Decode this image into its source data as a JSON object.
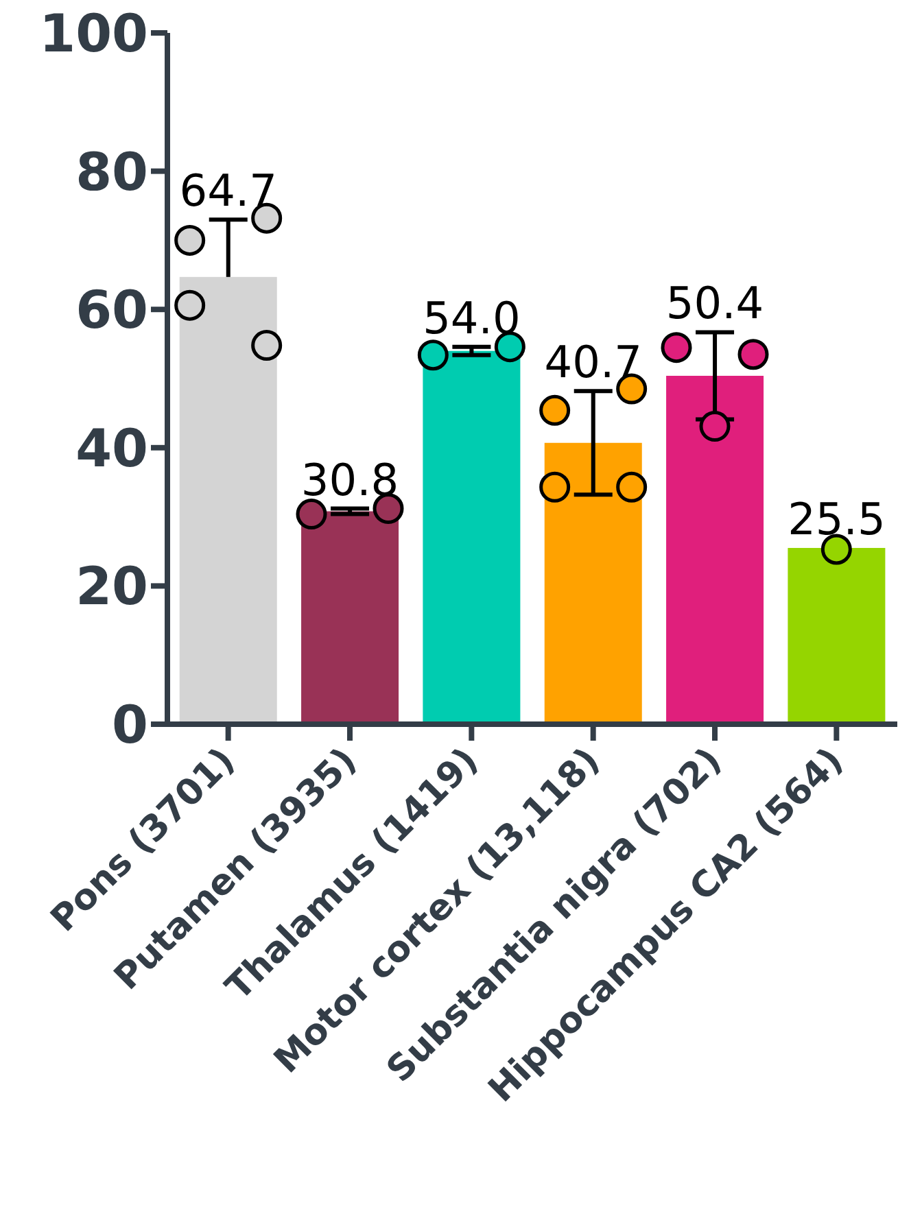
{
  "chart_data": {
    "type": "bar",
    "categories": [
      "Pons (3701)",
      "Putamen (3935)",
      "Thalamus (1419)",
      "Motor cortex (13,118)",
      "Substantia nigra (702)",
      "Hippocampus CA2 (564)"
    ],
    "values": [
      64.7,
      30.8,
      54.0,
      40.7,
      50.4,
      25.5
    ],
    "colors": [
      "#d4d4d4",
      "#993256",
      "#00ccb0",
      "#ffa200",
      "#e01f7c",
      "#95d500"
    ],
    "errors": [
      [
        64.7,
        73.0
      ],
      0.4,
      0.6,
      7.5,
      6.3,
      null
    ],
    "value_labels": [
      "64.7",
      "30.8",
      "54.0",
      "40.7",
      "50.4",
      "25.5"
    ],
    "ylim": [
      0,
      100
    ],
    "yticks": [
      0,
      20,
      40,
      60,
      80,
      100
    ],
    "grid": false,
    "legend": false,
    "series": [
      {
        "type": "scatter",
        "x": [
          "Pons (3701)",
          "Pons (3701)",
          "Pons (3701)",
          "Pons (3701)",
          "Putamen (3935)",
          "Putamen (3935)",
          "Thalamus (1419)",
          "Thalamus (1419)",
          "Motor cortex (13,118)",
          "Motor cortex (13,118)",
          "Motor cortex (13,118)",
          "Motor cortex (13,118)",
          "Substantia nigra (702)",
          "Substantia nigra (702)",
          "Substantia nigra (702)",
          "Hippocampus CA2 (564)"
        ],
        "values": [
          70.0,
          73.2,
          60.6,
          54.8,
          30.4,
          31.2,
          53.4,
          54.6,
          45.4,
          48.5,
          34.3,
          34.3,
          54.5,
          53.5,
          43.1,
          25.3
        ],
        "colors": [
          "#d4d4d4",
          "#d4d4d4",
          "#d4d4d4",
          "#d4d4d4",
          "#993256",
          "#993256",
          "#00ccb0",
          "#00ccb0",
          "#ffa200",
          "#ffa200",
          "#ffa200",
          "#ffa200",
          "#e01f7c",
          "#e01f7c",
          "#e01f7c",
          "#95d500"
        ]
      }
    ]
  }
}
